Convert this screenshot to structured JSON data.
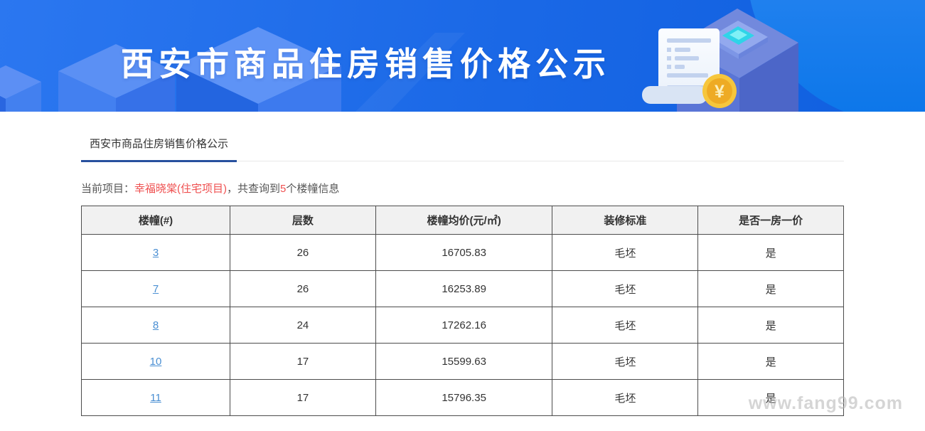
{
  "banner": {
    "title": "西安市商品住房销售价格公示"
  },
  "tab": {
    "label": "西安市商品住房销售价格公示"
  },
  "current_project": {
    "label": "当前项目：",
    "name": "幸福晓棠(住宅项目)",
    "separator": "，共查询到",
    "count": "5",
    "suffix": "个楼幢信息"
  },
  "table": {
    "headers": [
      "楼幢(#)",
      "层数",
      "楼幢均价(元/㎡)",
      "装修标准",
      "是否一房一价"
    ],
    "rows": [
      [
        "3",
        "26",
        "16705.83",
        "毛坯",
        "是"
      ],
      [
        "7",
        "26",
        "16253.89",
        "毛坯",
        "是"
      ],
      [
        "8",
        "24",
        "17262.16",
        "毛坯",
        "是"
      ],
      [
        "10",
        "17",
        "15599.63",
        "毛坯",
        "是"
      ],
      [
        "11",
        "17",
        "15796.35",
        "毛坯",
        "是"
      ]
    ]
  },
  "watermark": "www.fang99.com",
  "icons": {
    "coin_symbol": "¥"
  },
  "colors": {
    "banner_gradient_start": "#2b77f0",
    "banner_gradient_end": "#0f5fdf",
    "banner_circle": "#0c78ea",
    "tab_underline": "#27509e",
    "accent_red": "#ef5050",
    "link_blue": "#4a8fd3",
    "table_border": "#4c4c4c",
    "header_bg": "#f1f1f1",
    "coin_gold": "#f6c63c"
  }
}
